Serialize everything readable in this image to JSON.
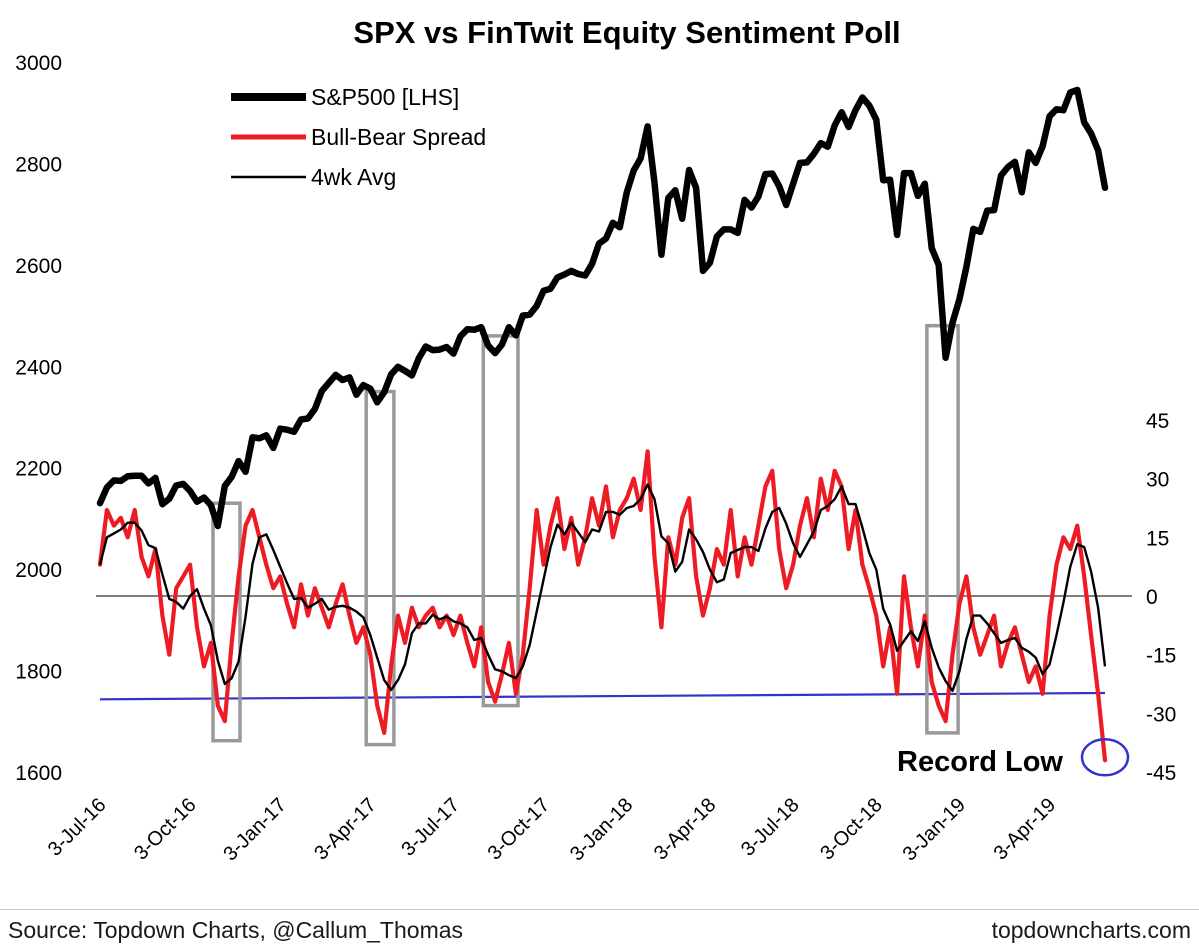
{
  "chart": {
    "title": "SPX vs FinTwit Equity Sentiment Poll",
    "annotation": "Record Low",
    "legend": [
      {
        "label": "S&P500 [LHS]",
        "color": "#000000"
      },
      {
        "label": "Bull-Bear Spread",
        "color": "#ed1c24"
      },
      {
        "label": "4wk Avg",
        "color": "#000000"
      }
    ]
  },
  "chart_data": {
    "type": "line",
    "title": "SPX vs FinTwit Equity Sentiment Poll",
    "x_labels": [
      "3-Jul-16",
      "3-Oct-16",
      "3-Jan-17",
      "3-Apr-17",
      "3-Jul-17",
      "3-Oct-17",
      "3-Jan-18",
      "3-Apr-18",
      "3-Jul-18",
      "3-Oct-18",
      "3-Jan-19",
      "3-Apr-19"
    ],
    "x_label_indices": [
      0,
      13,
      26,
      39,
      51,
      64,
      76,
      88,
      100,
      112,
      124,
      137
    ],
    "frequency": "weekly",
    "left_axis": {
      "label": "S&P500",
      "ticks": [
        3000,
        2800,
        2600,
        2400,
        2200,
        2000,
        1800,
        1600
      ],
      "range": [
        1600,
        3000
      ]
    },
    "right_axis": {
      "label": "Bull-Bear Spread",
      "ticks": [
        45,
        30,
        15,
        0,
        -15,
        -30,
        -45
      ],
      "range": [
        -45,
        45
      ]
    },
    "series": [
      {
        "name": "S&P500 [LHS]",
        "axis": "left",
        "color": "#000000",
        "values": [
          2130,
          2161,
          2175,
          2174,
          2183,
          2184,
          2184,
          2169,
          2180,
          2128,
          2139,
          2165,
          2168,
          2154,
          2133,
          2141,
          2126,
          2085,
          2164,
          2182,
          2213,
          2192,
          2260,
          2258,
          2264,
          2239,
          2277,
          2275,
          2271,
          2295,
          2297,
          2316,
          2351,
          2367,
          2383,
          2373,
          2378,
          2344,
          2363,
          2356,
          2329,
          2349,
          2384,
          2399,
          2391,
          2382,
          2416,
          2439,
          2432,
          2433,
          2438,
          2425,
          2459,
          2473,
          2472,
          2477,
          2441,
          2426,
          2443,
          2477,
          2461,
          2500,
          2502,
          2519,
          2549,
          2553,
          2575,
          2581,
          2588,
          2582,
          2579,
          2602,
          2642,
          2652,
          2683,
          2674,
          2743,
          2786,
          2810,
          2873,
          2762,
          2620,
          2732,
          2747,
          2691,
          2787,
          2752,
          2588,
          2604,
          2656,
          2670,
          2670,
          2663,
          2728,
          2713,
          2735,
          2779,
          2780,
          2755,
          2718,
          2760,
          2801,
          2802,
          2819,
          2840,
          2833,
          2875,
          2901,
          2872,
          2905,
          2930,
          2914,
          2886,
          2767,
          2768,
          2659,
          2781,
          2781,
          2736,
          2760,
          2633,
          2600,
          2417,
          2486,
          2532,
          2596,
          2671,
          2665,
          2707,
          2708,
          2776,
          2793,
          2803,
          2743,
          2822,
          2801,
          2834,
          2893,
          2907,
          2905,
          2940,
          2945,
          2881,
          2859,
          2826,
          2752
        ]
      },
      {
        "name": "Bull-Bear Spread",
        "axis": "right",
        "color": "#ed1c24",
        "values": [
          8,
          22,
          18,
          20,
          15,
          22,
          10,
          5,
          12,
          -5,
          -15,
          2,
          5,
          8,
          -8,
          -18,
          -12,
          -28,
          -32,
          -12,
          5,
          18,
          22,
          15,
          8,
          2,
          5,
          -2,
          -8,
          3,
          -5,
          2,
          -3,
          -8,
          -2,
          3,
          -5,
          -12,
          -8,
          -15,
          -28,
          -35,
          -18,
          -5,
          -12,
          -3,
          -8,
          -5,
          -3,
          -8,
          -5,
          -10,
          -5,
          -12,
          -18,
          -8,
          -22,
          -27,
          -20,
          -12,
          -25,
          -15,
          2,
          22,
          8,
          18,
          25,
          12,
          20,
          8,
          15,
          25,
          18,
          28,
          15,
          22,
          25,
          30,
          22,
          37,
          10,
          -8,
          15,
          8,
          20,
          25,
          5,
          -5,
          2,
          12,
          8,
          22,
          5,
          15,
          8,
          18,
          28,
          32,
          12,
          2,
          8,
          18,
          25,
          15,
          30,
          22,
          32,
          28,
          12,
          22,
          8,
          2,
          -5,
          -18,
          -8,
          -25,
          5,
          -8,
          -18,
          -5,
          -22,
          -28,
          -32,
          -15,
          -2,
          5,
          -8,
          -15,
          -10,
          -5,
          -18,
          -12,
          -8,
          -15,
          -22,
          -18,
          -25,
          -5,
          8,
          15,
          12,
          18,
          5,
          -10,
          -25,
          -42
        ]
      },
      {
        "name": "4wk Avg",
        "axis": "right",
        "color": "#000000",
        "derived": "trailing 4-week average of Bull-Bear Spread"
      }
    ],
    "zero_line": {
      "value": 0,
      "color": "#808080"
    },
    "blue_line": {
      "start": -26.4,
      "end": -24.8,
      "color": "#3333cc"
    },
    "highlight_boxes": [
      {
        "i0": 16.3,
        "i1": 20.2,
        "top_price": 2130,
        "bottom_spread": -37,
        "color": "#999999"
      },
      {
        "i0": 38.4,
        "i1": 42.4,
        "top_price": 2350,
        "bottom_spread": -38,
        "color": "#999999"
      },
      {
        "i0": 55.3,
        "i1": 60.3,
        "top_price": 2460,
        "bottom_spread": -28,
        "color": "#999999"
      },
      {
        "i0": 119.3,
        "i1": 123.8,
        "top_price": 2480,
        "bottom_spread": -35,
        "color": "#999999"
      }
    ],
    "record_low": {
      "index": 145,
      "value": -42,
      "label": "Record Low"
    }
  },
  "footer": {
    "source": "Source: Topdown Charts, @Callum_Thomas",
    "site": "topdowncharts.com"
  }
}
